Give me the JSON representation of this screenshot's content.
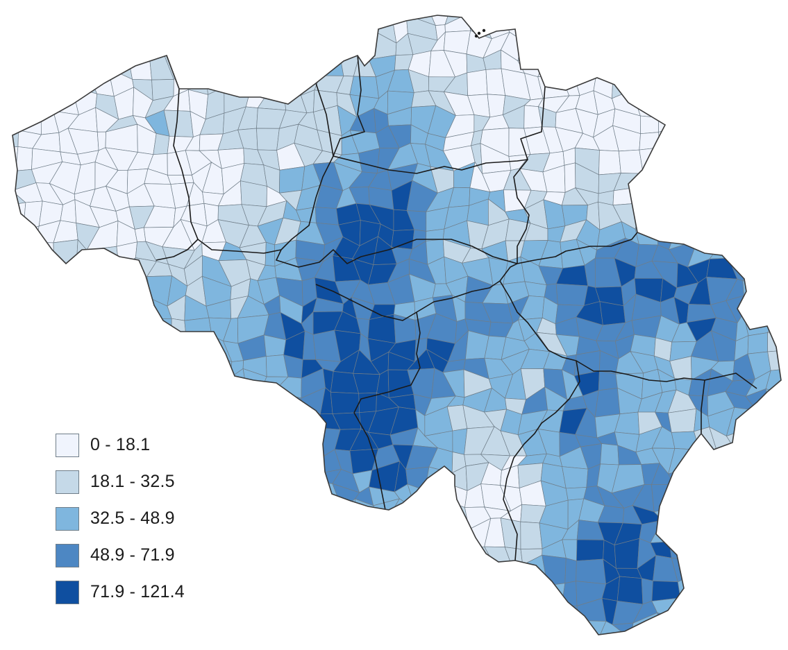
{
  "map": {
    "class_colors": [
      "#f0f4fd",
      "#c5d9e8",
      "#7fb6de",
      "#4d87c3",
      "#0f4fa0"
    ],
    "border_color": "#6f7d88",
    "province_border_color": "#1a1a1a"
  },
  "legend": {
    "items": [
      {
        "label": "0 - 18.1",
        "color": "#f0f4fd"
      },
      {
        "label": "18.1 - 32.5",
        "color": "#c5d9e8"
      },
      {
        "label": "32.5 - 48.9",
        "color": "#7fb6de"
      },
      {
        "label": "48.9 - 71.9",
        "color": "#4d87c3"
      },
      {
        "label": "71.9 - 121.4",
        "color": "#0f4fa0"
      }
    ]
  }
}
